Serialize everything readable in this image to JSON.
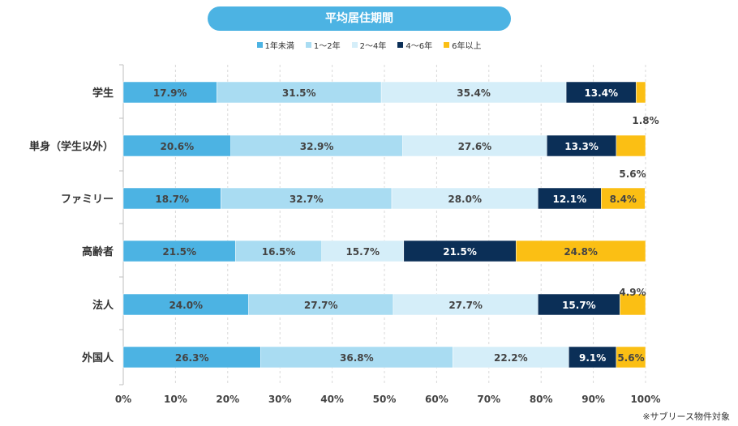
{
  "chart_data": {
    "type": "bar",
    "orientation": "horizontal",
    "stacked": true,
    "title": "平均居住期間",
    "categories": [
      "学生",
      "単身（学生以外）",
      "ファミリー",
      "高齢者",
      "法人",
      "外国人"
    ],
    "series": [
      {
        "name": "1年未満",
        "color": "#4cb3e3",
        "values": [
          17.9,
          20.6,
          18.7,
          21.5,
          24.0,
          26.3
        ]
      },
      {
        "name": "1～2年",
        "color": "#a9dcf2",
        "values": [
          31.5,
          32.9,
          32.7,
          16.5,
          27.7,
          36.8
        ]
      },
      {
        "name": "2～4年",
        "color": "#d5eef9",
        "values": [
          35.4,
          27.6,
          28.0,
          15.7,
          27.7,
          22.2
        ]
      },
      {
        "name": "4～6年",
        "color": "#0b2f57",
        "values": [
          13.4,
          13.3,
          12.1,
          21.5,
          15.7,
          9.1
        ]
      },
      {
        "name": "6年以上",
        "color": "#fbbf14",
        "values": [
          1.8,
          5.6,
          8.4,
          24.8,
          4.9,
          5.6
        ]
      }
    ],
    "xlim": [
      0,
      100
    ],
    "xticks": [
      "0%",
      "10%",
      "20%",
      "30%",
      "40%",
      "50%",
      "60%",
      "70%",
      "80%",
      "90%",
      "100%"
    ],
    "legend_position": "top-center"
  },
  "note": "※サブリース物件対象"
}
